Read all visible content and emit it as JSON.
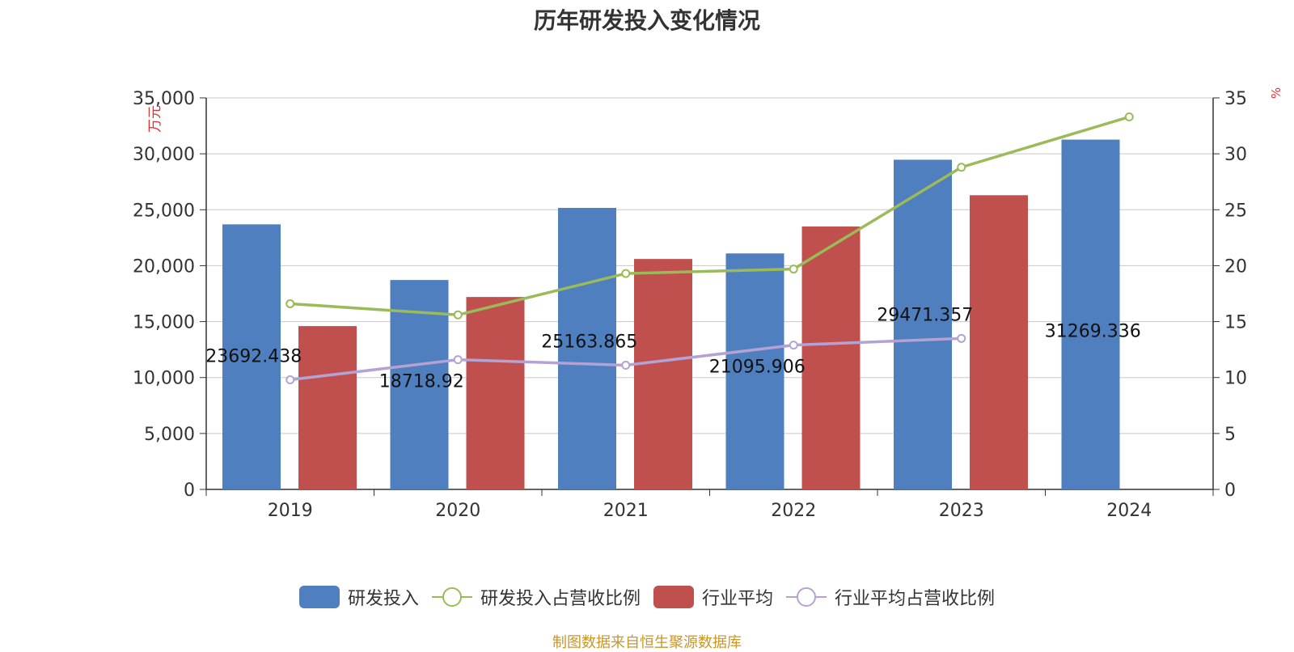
{
  "chart_data": {
    "type": "bar",
    "title": "历年研发投入变化情况",
    "categories": [
      "2019",
      "2020",
      "2021",
      "2022",
      "2023",
      "2024"
    ],
    "y_left": {
      "label": "万元",
      "ylim": [
        0,
        35000
      ],
      "ticks": [
        "0",
        "5,000",
        "10,000",
        "15,000",
        "20,000",
        "25,000",
        "30,000",
        "35,000"
      ]
    },
    "y_right": {
      "label": "%",
      "ylim": [
        0,
        35
      ],
      "ticks": [
        "0",
        "5",
        "10",
        "15",
        "20",
        "25",
        "30",
        "35"
      ]
    },
    "series": [
      {
        "name": "研发投入",
        "type": "bar",
        "axis": "left",
        "color": "#4f7fbf",
        "values": [
          23692.438,
          18718.92,
          25163.865,
          21095.906,
          29471.357,
          31269.336
        ],
        "labels": [
          "23692.438",
          "18718.92",
          "25163.865",
          "21095.906",
          "29471.357",
          "31269.336"
        ]
      },
      {
        "name": "研发投入占营收比例",
        "type": "line",
        "axis": "right",
        "color": "#9bbb59",
        "values": [
          16.6,
          15.6,
          19.3,
          19.7,
          28.8,
          33.3
        ]
      },
      {
        "name": "行业平均",
        "type": "bar",
        "axis": "left",
        "color": "#c0504d",
        "values": [
          14600,
          17200,
          20600,
          23500,
          26300,
          null
        ]
      },
      {
        "name": "行业平均占营收比例",
        "type": "line",
        "axis": "right",
        "color": "#b3a2d3",
        "values": [
          9.8,
          11.6,
          11.1,
          12.9,
          13.5,
          null
        ]
      }
    ],
    "grid": true,
    "legend_position": "bottom"
  },
  "source_note": "制图数据来自恒生聚源数据库"
}
